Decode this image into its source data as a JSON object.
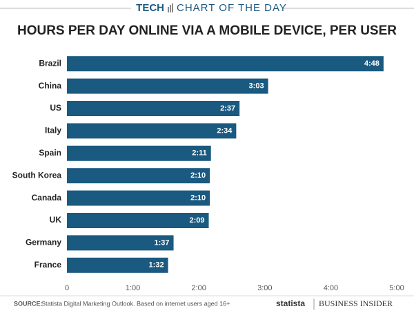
{
  "header": {
    "section": "TECH",
    "label": "CHART OF THE DAY"
  },
  "chart_data": {
    "type": "hbar",
    "title": "HOURS PER DAY ONLINE VIA A MOBILE DEVICE, PER USER",
    "categories": [
      "Brazil",
      "China",
      "US",
      "Italy",
      "Spain",
      "South Korea",
      "Canada",
      "UK",
      "Germany",
      "France"
    ],
    "values": [
      288,
      183,
      157,
      154,
      131,
      130,
      130,
      129,
      97,
      92
    ],
    "value_labels": [
      "4:48",
      "3:03",
      "2:37",
      "2:34",
      "2:11",
      "2:10",
      "2:10",
      "2:09",
      "1:37",
      "1:32"
    ],
    "color": "#1b5a80",
    "xlim": [
      0,
      300
    ],
    "xticks": [
      0,
      {
        "value": 60,
        "label": "1:00"
      },
      {
        "value": 120,
        "label": "2:00"
      },
      {
        "value": 180,
        "label": "3:00"
      },
      {
        "value": 240,
        "label": "4:00"
      },
      {
        "value": 300,
        "label": "5:00"
      }
    ],
    "grid": false
  },
  "footer": {
    "source_label": "SOURCE:",
    "source": "Statista Digital Marketing Outlook. Based on internet users aged 16+",
    "logo_left": "statista",
    "logo_right": "BUSINESS INSIDER"
  }
}
